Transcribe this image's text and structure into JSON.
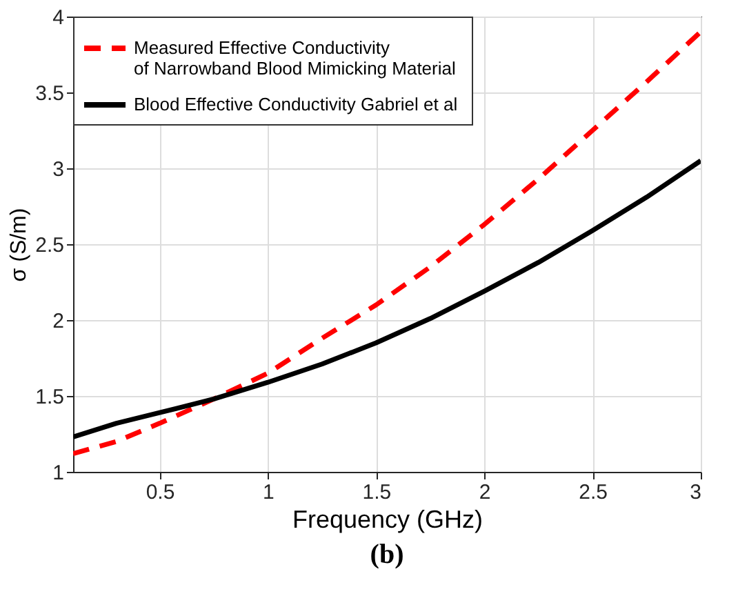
{
  "chart_data": {
    "type": "line",
    "xlabel": "Frequency (GHz)",
    "ylabel": "σ (S/m)",
    "annotations": [
      "(b)"
    ],
    "xlim": [
      0.1,
      3
    ],
    "xticks": [
      0.5,
      1,
      1.5,
      2,
      2.5,
      3
    ],
    "ylim": [
      1,
      4
    ],
    "yticks": [
      1,
      1.5,
      2,
      2.5,
      3,
      3.5,
      4
    ],
    "grid": true,
    "legend": "top left",
    "series": [
      {
        "name": "Measured Effective Conductivity of Narrowband Blood Mimicking Material",
        "color": "#ff0000",
        "line_style": "dashed",
        "x": [
          0.1,
          0.3,
          0.5,
          0.75,
          1,
          1.25,
          1.5,
          1.75,
          2,
          2.25,
          2.5,
          2.75,
          3
        ],
        "values": [
          1.12,
          1.2,
          1.32,
          1.48,
          1.65,
          1.88,
          2.1,
          2.35,
          2.63,
          2.93,
          3.25,
          3.57,
          3.9
        ]
      },
      {
        "name": "Blood  Effective Conductivity Gabriel et al",
        "color": "#000000",
        "line_style": "solid",
        "x": [
          0.1,
          0.3,
          0.5,
          0.75,
          1,
          1.25,
          1.5,
          1.75,
          2,
          2.25,
          2.5,
          2.75,
          3
        ],
        "values": [
          1.23,
          1.32,
          1.39,
          1.48,
          1.59,
          1.71,
          1.85,
          2.01,
          2.19,
          2.38,
          2.59,
          2.81,
          3.05
        ]
      }
    ]
  }
}
